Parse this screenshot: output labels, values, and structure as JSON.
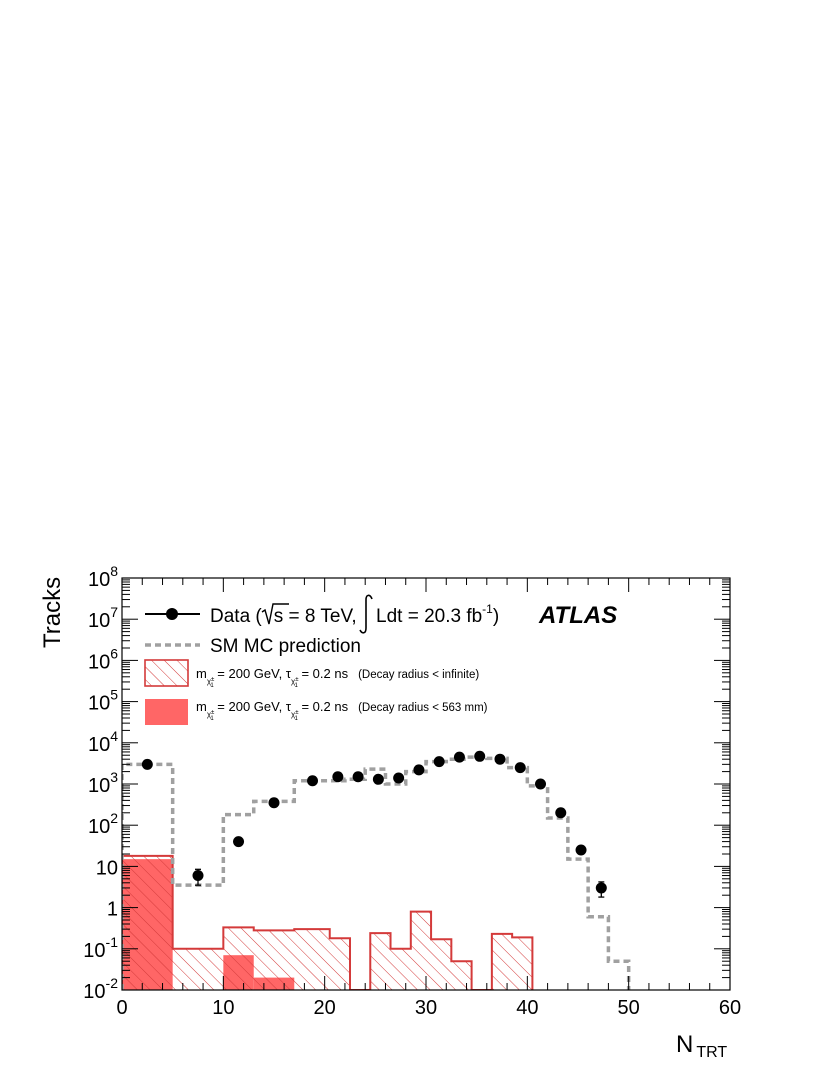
{
  "chart_data": {
    "type": "histogram",
    "xlabel_main": "N",
    "xlabel_sub": "TRT",
    "ylabel": "Tracks",
    "xlim": [
      0,
      60
    ],
    "ylim": [
      0.01,
      100000000
    ],
    "y_log": true,
    "x_ticks": [
      "0",
      "10",
      "20",
      "30",
      "40",
      "50",
      "60"
    ],
    "y_ticks": [
      {
        "base": "10",
        "exp": "-2",
        "value": 0.01
      },
      {
        "base": "10",
        "exp": "-1",
        "value": 0.1
      },
      {
        "base": "1",
        "exp": "",
        "value": 1
      },
      {
        "base": "10",
        "exp": "",
        "value": 10
      },
      {
        "base": "10",
        "exp": "2",
        "value": 100
      },
      {
        "base": "10",
        "exp": "3",
        "value": 1000
      },
      {
        "base": "10",
        "exp": "4",
        "value": 10000
      },
      {
        "base": "10",
        "exp": "5",
        "value": 100000
      },
      {
        "base": "10",
        "exp": "6",
        "value": 1000000
      },
      {
        "base": "10",
        "exp": "7",
        "value": 10000000
      },
      {
        "base": "10",
        "exp": "8",
        "value": 100000000
      }
    ],
    "experiment_label": "ATLAS",
    "series": [
      {
        "name": "Data",
        "kind": "points",
        "color": "#000000",
        "x": [
          2.5,
          7.5,
          11.5,
          15,
          18.8,
          21.3,
          23.3,
          25.3,
          27.3,
          29.3,
          31.3,
          33.3,
          35.3,
          37.3,
          39.3,
          41.3,
          43.3,
          45.3,
          47.3
        ],
        "y": [
          3000,
          6,
          40,
          350,
          1200,
          1500,
          1500,
          1300,
          1400,
          2200,
          3500,
          4500,
          4700,
          4000,
          2500,
          1000,
          200,
          25,
          3
        ],
        "yerr": [
          0,
          2.5,
          0,
          0,
          0,
          0,
          0,
          0,
          0,
          0,
          0,
          0,
          0,
          0,
          0,
          0,
          0,
          0,
          1.2
        ]
      },
      {
        "name": "SM MC prediction",
        "kind": "step",
        "style": "dashed",
        "color": "#a0a0a0",
        "edges": [
          0,
          5,
          10,
          13,
          17,
          22,
          24,
          26,
          28,
          30,
          32,
          34,
          36,
          38,
          40,
          42,
          44,
          46,
          48,
          50
        ],
        "values": [
          3000,
          3.5,
          180,
          380,
          1200,
          1300,
          2300,
          1000,
          2000,
          3500,
          4000,
          4500,
          4200,
          2500,
          900,
          150,
          15,
          0.6,
          0.05
        ]
      },
      {
        "name": "Decay radius < infinite",
        "kind": "step",
        "style": "hatched",
        "color": "#d43a3a",
        "edges": [
          0,
          5,
          10,
          13,
          17,
          20.5,
          22.5,
          24.5,
          26.5,
          28.5,
          30.5,
          32.5,
          34.5,
          36.5,
          38.5,
          40.5
        ],
        "values": [
          18,
          0.1,
          0.33,
          0.28,
          0.3,
          0.18,
          0.01,
          0.24,
          0.1,
          0.8,
          0.17,
          0.05,
          0.01,
          0.23,
          0.19
        ]
      },
      {
        "name": "Decay radius < 563 mm",
        "kind": "step",
        "style": "filled",
        "color": "#ff6666",
        "edges": [
          0,
          5,
          10,
          13,
          17
        ],
        "values": [
          15,
          0.01,
          0.07,
          0.02
        ]
      }
    ]
  },
  "legend": {
    "data": {
      "prefix": "Data (",
      "sqrt_s": "s",
      "energy": " = 8 TeV,",
      "lumi_prefix": "Ldt = 20.3 fb",
      "lumi_exp": "-1",
      "suffix": ")"
    },
    "mc": "SM MC prediction",
    "signal_params": {
      "m": "m",
      "mass_text": " = 200 GeV, ",
      "tau": "τ",
      "lifetime_text": " = 0.2 ns",
      "chi_label": "χ",
      "chi_sub": "1",
      "chi_sup": "±"
    },
    "hatched_note": "(Decay radius < infinite)",
    "filled_note": "(Decay radius < 563 mm)"
  }
}
